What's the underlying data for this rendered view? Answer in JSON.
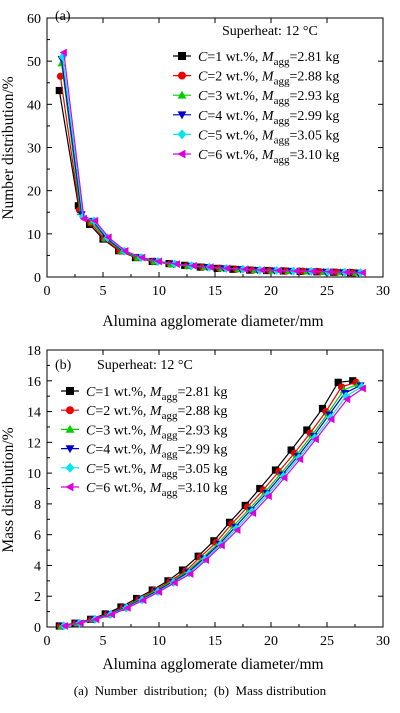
{
  "caption": "(a)  Number  distribution;  (b)  Mass distribution",
  "series_style": [
    {
      "color": "#000000",
      "marker": "square"
    },
    {
      "color": "#ee0000",
      "marker": "circle"
    },
    {
      "color": "#00cc00",
      "marker": "triangle-up"
    },
    {
      "color": "#0000cc",
      "marker": "triangle-down"
    },
    {
      "color": "#00e5ee",
      "marker": "diamond"
    },
    {
      "color": "#dd00dd",
      "marker": "triangle-left"
    }
  ],
  "legend_entries": [
    {
      "c_label": "C",
      "c_value": "=1 wt.%, ",
      "m_label": "M",
      "m_sub": "agg",
      "m_value": "=2.81 kg"
    },
    {
      "c_label": "C",
      "c_value": "=2 wt.%, ",
      "m_label": "M",
      "m_sub": "agg",
      "m_value": "=2.88 kg"
    },
    {
      "c_label": "C",
      "c_value": "=3 wt.%, ",
      "m_label": "M",
      "m_sub": "agg",
      "m_value": "=2.93 kg"
    },
    {
      "c_label": "C",
      "c_value": "=4 wt.%, ",
      "m_label": "M",
      "m_sub": "agg",
      "m_value": "=2.99 kg"
    },
    {
      "c_label": "C",
      "c_value": "=5 wt.%, ",
      "m_label": "M",
      "m_sub": "agg",
      "m_value": "=3.05 kg"
    },
    {
      "c_label": "C",
      "c_value": "=6 wt.%, ",
      "m_label": "M",
      "m_sub": "agg",
      "m_value": "=3.10 kg"
    }
  ],
  "chart_data": [
    {
      "type": "line",
      "panel_label": "(a)",
      "annotation": "Superheat: 12 °C",
      "xlabel": "Alumina agglomerate diameter/mm",
      "ylabel": "Number distribution/%",
      "xlim": [
        0,
        30
      ],
      "ylim": [
        0,
        60
      ],
      "xticks": [
        0,
        5,
        10,
        15,
        20,
        25,
        30
      ],
      "yticks": [
        0,
        10,
        20,
        30,
        40,
        50,
        60
      ],
      "grid": false,
      "legend_position": "top-right",
      "series": [
        {
          "x": [
            1.1,
            2.8,
            3.8,
            5.0,
            6.4,
            7.9,
            9.4,
            10.9,
            12.3,
            13.7,
            15.2,
            16.6,
            18.1,
            19.6,
            21.1,
            22.6,
            24.1,
            25.6,
            27.1
          ],
          "y": [
            43.2,
            16.5,
            12.2,
            8.8,
            6.1,
            4.5,
            3.6,
            3.1,
            2.7,
            2.3,
            2.0,
            1.8,
            1.6,
            1.5,
            1.4,
            1.3,
            1.2,
            1.1,
            1.0
          ]
        },
        {
          "x": [
            1.2,
            2.9,
            3.9,
            5.1,
            6.5,
            8.0,
            9.5,
            11.0,
            12.5,
            13.9,
            15.4,
            16.9,
            18.4,
            19.9,
            21.4,
            22.9,
            24.4,
            25.9,
            27.4
          ],
          "y": [
            46.5,
            15.5,
            12.5,
            8.9,
            6.0,
            4.5,
            3.6,
            3.0,
            2.6,
            2.3,
            2.0,
            1.8,
            1.6,
            1.5,
            1.4,
            1.3,
            1.2,
            1.1,
            1.0
          ]
        },
        {
          "x": [
            1.3,
            3.0,
            4.0,
            5.2,
            6.7,
            8.1,
            9.6,
            11.1,
            12.6,
            14.1,
            15.6,
            17.1,
            18.6,
            20.1,
            21.6,
            23.2,
            24.7,
            26.2,
            27.6
          ],
          "y": [
            49.5,
            15.0,
            12.8,
            9.0,
            6.0,
            4.5,
            3.6,
            3.0,
            2.6,
            2.3,
            2.0,
            1.8,
            1.6,
            1.5,
            1.4,
            1.3,
            1.2,
            1.1,
            1.0
          ]
        },
        {
          "x": [
            1.3,
            3.1,
            4.1,
            5.3,
            6.8,
            8.3,
            9.8,
            11.3,
            12.8,
            14.3,
            15.8,
            17.3,
            18.8,
            20.3,
            21.8,
            23.4,
            24.9,
            26.4,
            27.8
          ],
          "y": [
            50.5,
            14.5,
            13.0,
            9.0,
            6.0,
            4.5,
            3.6,
            3.0,
            2.6,
            2.3,
            2.0,
            1.8,
            1.6,
            1.5,
            1.4,
            1.3,
            1.2,
            1.1,
            1.0
          ]
        },
        {
          "x": [
            1.4,
            3.2,
            4.2,
            5.4,
            6.9,
            8.4,
            9.9,
            11.4,
            12.9,
            14.5,
            16.0,
            17.5,
            19.0,
            20.5,
            22.0,
            23.6,
            25.1,
            26.6,
            28.0
          ],
          "y": [
            51.0,
            14.0,
            13.0,
            9.1,
            6.0,
            4.5,
            3.6,
            3.0,
            2.6,
            2.3,
            2.0,
            1.8,
            1.6,
            1.5,
            1.4,
            1.3,
            1.2,
            1.1,
            1.0
          ]
        },
        {
          "x": [
            1.5,
            3.3,
            4.3,
            5.5,
            7.0,
            8.5,
            10.0,
            11.6,
            13.1,
            14.6,
            16.1,
            17.7,
            19.2,
            20.7,
            22.3,
            23.8,
            25.3,
            26.8,
            28.2
          ],
          "y": [
            52.0,
            13.5,
            13.0,
            9.2,
            6.0,
            4.5,
            3.6,
            3.0,
            2.6,
            2.3,
            2.0,
            1.8,
            1.6,
            1.5,
            1.4,
            1.3,
            1.2,
            1.1,
            1.0
          ]
        }
      ]
    },
    {
      "type": "line",
      "panel_label": "(b)",
      "annotation": "Superheat: 12 °C",
      "xlabel": "Alumina agglomerate diameter/mm",
      "ylabel": "Mass distribution/%",
      "xlim": [
        0,
        30
      ],
      "ylim": [
        0,
        18
      ],
      "xticks": [
        0,
        5,
        10,
        15,
        20,
        25,
        30
      ],
      "yticks": [
        0,
        2,
        4,
        6,
        8,
        10,
        12,
        14,
        16,
        18
      ],
      "grid": false,
      "legend_position": "top-left",
      "series": [
        {
          "x": [
            1.1,
            2.5,
            3.9,
            5.2,
            6.6,
            8.0,
            9.4,
            10.8,
            12.1,
            13.5,
            14.9,
            16.3,
            17.7,
            19.0,
            20.4,
            21.8,
            23.2,
            24.6,
            26.0,
            27.3
          ],
          "y": [
            0.07,
            0.25,
            0.5,
            0.85,
            1.3,
            1.85,
            2.4,
            3.0,
            3.7,
            4.6,
            5.6,
            6.8,
            7.9,
            9.0,
            10.2,
            11.5,
            12.8,
            14.2,
            15.9,
            16.0
          ]
        },
        {
          "x": [
            1.2,
            2.6,
            4.0,
            5.4,
            6.8,
            8.2,
            9.6,
            11.0,
            12.4,
            13.7,
            15.1,
            16.5,
            17.9,
            19.3,
            20.7,
            22.1,
            23.5,
            24.9,
            26.3,
            27.6
          ],
          "y": [
            0.07,
            0.25,
            0.5,
            0.84,
            1.28,
            1.82,
            2.38,
            2.98,
            3.65,
            4.55,
            5.5,
            6.7,
            7.8,
            8.9,
            10.1,
            11.3,
            12.6,
            14.0,
            15.6,
            15.9
          ]
        },
        {
          "x": [
            1.3,
            2.7,
            4.1,
            5.5,
            6.9,
            8.3,
            9.7,
            11.1,
            12.5,
            13.9,
            15.3,
            16.7,
            18.1,
            19.5,
            20.9,
            22.3,
            23.7,
            25.1,
            26.5,
            27.8
          ],
          "y": [
            0.07,
            0.25,
            0.5,
            0.84,
            1.27,
            1.8,
            2.36,
            2.95,
            3.6,
            4.5,
            5.45,
            6.6,
            7.7,
            8.8,
            10.0,
            11.2,
            12.5,
            13.9,
            15.4,
            15.8
          ]
        },
        {
          "x": [
            1.4,
            2.8,
            4.2,
            5.6,
            7.0,
            8.4,
            9.8,
            11.2,
            12.6,
            14.0,
            15.4,
            16.8,
            18.2,
            19.6,
            21.0,
            22.4,
            23.8,
            25.2,
            26.6,
            28.0
          ],
          "y": [
            0.07,
            0.25,
            0.5,
            0.83,
            1.26,
            1.78,
            2.33,
            2.92,
            3.55,
            4.45,
            5.4,
            6.5,
            7.6,
            8.7,
            9.9,
            11.1,
            12.4,
            13.8,
            15.2,
            15.7
          ]
        },
        {
          "x": [
            1.5,
            2.9,
            4.3,
            5.7,
            7.1,
            8.5,
            9.9,
            11.3,
            12.7,
            14.1,
            15.5,
            16.9,
            18.3,
            19.7,
            21.1,
            22.5,
            23.9,
            25.3,
            26.7,
            28.1
          ],
          "y": [
            0.07,
            0.25,
            0.5,
            0.82,
            1.25,
            1.76,
            2.3,
            2.9,
            3.5,
            4.4,
            5.35,
            6.4,
            7.5,
            8.6,
            9.8,
            11.0,
            12.3,
            13.6,
            15.0,
            15.6
          ]
        },
        {
          "x": [
            1.6,
            3.0,
            4.4,
            5.8,
            7.2,
            8.6,
            10.0,
            11.4,
            12.8,
            14.2,
            15.6,
            17.0,
            18.4,
            19.8,
            21.2,
            22.6,
            24.0,
            25.4,
            26.8,
            28.2
          ],
          "y": [
            0.07,
            0.25,
            0.5,
            0.81,
            1.24,
            1.74,
            2.28,
            2.88,
            3.45,
            4.35,
            5.3,
            6.3,
            7.4,
            8.5,
            9.7,
            10.9,
            12.2,
            13.5,
            14.8,
            15.5
          ]
        }
      ]
    }
  ]
}
